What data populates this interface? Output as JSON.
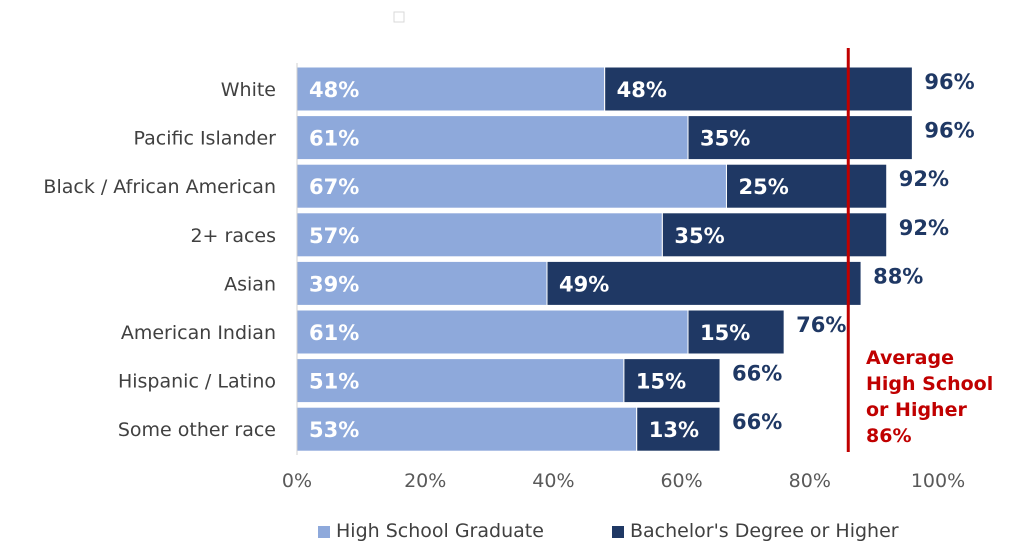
{
  "chart_data": {
    "type": "bar",
    "stacked": true,
    "orientation": "horizontal",
    "categories": [
      "White",
      "Pacific Islander",
      "Black / African American",
      "2+ races",
      "Asian",
      "American Indian",
      "Hispanic / Latino",
      "Some other race"
    ],
    "series": [
      {
        "name": "High School Graduate",
        "values": [
          48,
          61,
          67,
          57,
          39,
          61,
          51,
          53
        ],
        "labels": [
          "48%",
          "61%",
          "67%",
          "57%",
          "39%",
          "61%",
          "51%",
          "53%"
        ],
        "color": "#8EA9DB"
      },
      {
        "name": "Bachelor's Degree or Higher",
        "values": [
          48,
          35,
          25,
          35,
          49,
          15,
          15,
          13
        ],
        "labels": [
          "48%",
          "35%",
          "25%",
          "35%",
          "49%",
          "15%",
          "15%",
          "13%"
        ],
        "color": "#1F3864"
      }
    ],
    "totals": [
      96,
      96,
      92,
      92,
      88,
      76,
      66,
      66
    ],
    "total_labels": [
      "96%",
      "96%",
      "92%",
      "92%",
      "88%",
      "76%",
      "66%",
      "66%"
    ],
    "total_label_color": "#1F3864",
    "xlim": [
      0,
      100
    ],
    "x_ticks": [
      "0%",
      "20%",
      "40%",
      "60%",
      "80%",
      "100%"
    ],
    "grid": false,
    "legend_position": "bottom",
    "reference_line": {
      "value": 86,
      "color": "#C00000",
      "label_lines": [
        "Average",
        "High School",
        "or Higher",
        "86%"
      ]
    }
  }
}
